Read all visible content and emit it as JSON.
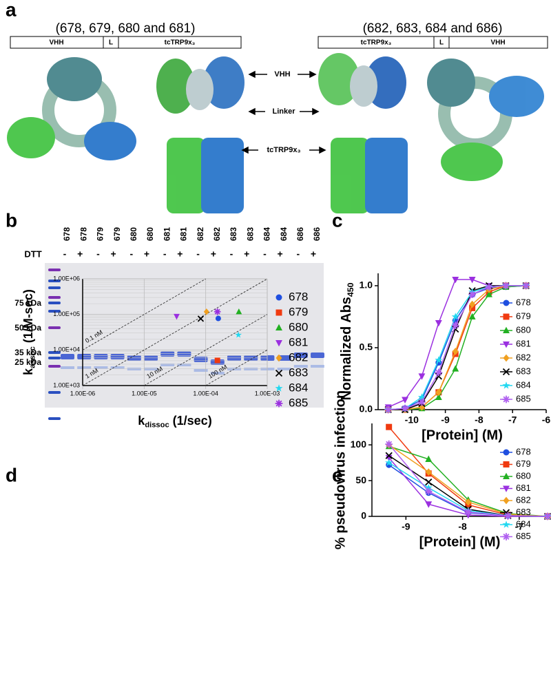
{
  "panels": {
    "a": {
      "letter": "a",
      "left": {
        "title": "(678, 679, 680 and 681)",
        "segments": [
          "VHH",
          "L",
          "tcTRP9x₃"
        ]
      },
      "right": {
        "title": "(682, 683, 684 and 686)",
        "segments": [
          "tcTRP9x₃",
          "L",
          "VHH"
        ]
      },
      "arrows": [
        "VHH",
        "Linker",
        "tcTRP9x₃"
      ]
    },
    "b": {
      "letter": "b",
      "dtt_label": "DTT",
      "lanes": [
        {
          "name": "678",
          "dtt": "-"
        },
        {
          "name": "678",
          "dtt": "+"
        },
        {
          "name": "679",
          "dtt": "-"
        },
        {
          "name": "679",
          "dtt": "+"
        },
        {
          "name": "680",
          "dtt": "-"
        },
        {
          "name": "680",
          "dtt": "+"
        },
        {
          "name": "681",
          "dtt": "-"
        },
        {
          "name": "681",
          "dtt": "+"
        },
        {
          "name": "682",
          "dtt": "-"
        },
        {
          "name": "682",
          "dtt": "+"
        },
        {
          "name": "683",
          "dtt": "-"
        },
        {
          "name": "683",
          "dtt": "+"
        },
        {
          "name": "684",
          "dtt": "-"
        },
        {
          "name": "684",
          "dtt": "+"
        },
        {
          "name": "686",
          "dtt": "-"
        },
        {
          "name": "686",
          "dtt": "+"
        }
      ],
      "markers": [
        "75 kDa",
        "50 kDa",
        "35 kDa",
        "25 kDa"
      ]
    },
    "c": {
      "letter": "c"
    },
    "d": {
      "letter": "d"
    },
    "e": {
      "letter": "e"
    }
  },
  "chart_data": [
    {
      "type": "line",
      "x_label": "[Protein] (M)",
      "y_label": {
        "text": "Normalized Abs",
        "sub": "450"
      },
      "xlim": [
        -11,
        -6
      ],
      "xticks": [
        -10,
        -9,
        -8,
        -7,
        -6
      ],
      "ylim": [
        0,
        1.1
      ],
      "yticks": [
        {
          "value": 0,
          "label": "0.0"
        },
        0.5,
        {
          "value": 1,
          "label": "1.0"
        }
      ],
      "legend": "right",
      "x": [
        -10.7,
        -10.2,
        -9.7,
        -9.2,
        -8.7,
        -8.2,
        -7.7,
        -7.2,
        -6.6
      ],
      "series": [
        {
          "name": "678",
          "color": "#1f4fe0",
          "marker": "circle",
          "values": [
            0,
            0.01,
            0.08,
            0.38,
            0.72,
            0.93,
            0.98,
            0.99,
            1.0
          ]
        },
        {
          "name": "679",
          "color": "#f03a10",
          "marker": "square",
          "values": [
            0,
            0,
            0.02,
            0.14,
            0.45,
            0.82,
            0.95,
            1.0,
            1.0
          ]
        },
        {
          "name": "680",
          "color": "#22b022",
          "marker": "triangle",
          "values": [
            0,
            0,
            0.01,
            0.1,
            0.33,
            0.75,
            0.93,
            0.99,
            1.0
          ]
        },
        {
          "name": "681",
          "color": "#9b30e0",
          "marker": "triangle-down",
          "values": [
            0.02,
            0.08,
            0.27,
            0.7,
            1.05,
            1.05,
            1.0,
            1.0,
            1.0
          ]
        },
        {
          "name": "682",
          "color": "#f0a020",
          "marker": "diamond",
          "values": [
            0,
            0,
            0.02,
            0.14,
            0.47,
            0.85,
            0.97,
            1.0,
            1.0
          ]
        },
        {
          "name": "683",
          "color": "#000000",
          "marker": "x",
          "values": [
            0,
            0,
            0.05,
            0.27,
            0.65,
            0.96,
            1.0,
            1.0,
            1.0
          ]
        },
        {
          "name": "684",
          "color": "#22d8f0",
          "marker": "star",
          "values": [
            0,
            0.01,
            0.1,
            0.4,
            0.75,
            0.95,
            0.99,
            1.0,
            1.0
          ]
        },
        {
          "name": "685",
          "color": "#b060f0",
          "marker": "asterisk",
          "values": [
            0,
            0.01,
            0.06,
            0.3,
            0.68,
            0.93,
            0.99,
            1.0,
            1.0
          ]
        }
      ]
    },
    {
      "type": "scatter",
      "x_label": {
        "text": "k",
        "sub": "dissoc",
        "after": " (1/sec)"
      },
      "y_label": {
        "text": "k",
        "sub": "assoc",
        "after": " (1/M-sec)"
      },
      "xlog": true,
      "ylog": true,
      "grid": true,
      "legend": "right",
      "xlim": [
        1e-06,
        0.001
      ],
      "xticks": [
        {
          "value": 1e-06,
          "label": "1.00E-06"
        },
        {
          "value": 1e-05,
          "label": "1.00E-05"
        },
        {
          "value": 0.0001,
          "label": "1.00E-04"
        },
        {
          "value": 0.001,
          "label": "1.00E-03"
        }
      ],
      "ylim": [
        1000,
        1000000
      ],
      "yticks": [
        {
          "value": 1000,
          "label": "1.00E+03"
        },
        {
          "value": 10000,
          "label": "1.00E+04"
        },
        {
          "value": 100000,
          "label": "1.00E+05"
        },
        {
          "value": 1000000,
          "label": "1.00E+06"
        }
      ],
      "iso_lines": [
        {
          "label": "0.1 nM",
          "kd": 1e-10
        },
        {
          "label": "1 nM",
          "kd": 1e-09
        },
        {
          "label": "10 nM",
          "kd": 1e-08
        },
        {
          "label": "100 nM",
          "kd": 1e-07
        }
      ],
      "series": [
        {
          "name": "678",
          "color": "#1f4fe0",
          "marker": "circle",
          "x": [
            0.00016
          ],
          "values": [
            77000
          ]
        },
        {
          "name": "679",
          "color": "#f03a10",
          "marker": "square",
          "x": [
            0.000155
          ],
          "values": [
            5100
          ]
        },
        {
          "name": "680",
          "color": "#22b022",
          "marker": "triangle",
          "x": [
            0.000346
          ],
          "values": [
            119000
          ]
        },
        {
          "name": "681",
          "color": "#9b30e0",
          "marker": "triangle-down",
          "x": [
            3.37e-05
          ],
          "values": [
            88000
          ]
        },
        {
          "name": "682",
          "color": "#f0a020",
          "marker": "diamond",
          "x": [
            0.000103
          ],
          "values": [
            119000
          ]
        },
        {
          "name": "683",
          "color": "#000000",
          "marker": "x",
          "x": [
            8.3e-05
          ],
          "values": [
            76000
          ]
        },
        {
          "name": "684",
          "color": "#22d8f0",
          "marker": "star",
          "x": [
            0.00034
          ],
          "values": [
            26500
          ]
        },
        {
          "name": "685",
          "color": "#9b30e0",
          "marker": "asterisk",
          "x": [
            0.000155
          ],
          "values": [
            119000
          ]
        }
      ]
    },
    {
      "type": "line",
      "x_label": "[Protein] (M)",
      "y_label": "% pseudovirus infection",
      "xlim": [
        -9.6,
        -6.5
      ],
      "xticks": [
        -9,
        -8,
        -7
      ],
      "ylim": [
        0,
        130
      ],
      "yticks": [
        0,
        50,
        100
      ],
      "legend": "right",
      "x": [
        -9.3,
        -8.6,
        -7.9,
        -7.2,
        -6.5
      ],
      "series": [
        {
          "name": "678",
          "color": "#1f4fe0",
          "marker": "circle",
          "values": [
            72,
            33,
            5,
            1,
            0
          ]
        },
        {
          "name": "679",
          "color": "#f03a10",
          "marker": "square",
          "values": [
            125,
            60,
            16,
            2,
            0
          ]
        },
        {
          "name": "680",
          "color": "#22b022",
          "marker": "triangle",
          "values": [
            98,
            80,
            23,
            4,
            0
          ]
        },
        {
          "name": "681",
          "color": "#9b30e0",
          "marker": "triangle-down",
          "values": [
            82,
            17,
            2,
            0,
            0
          ]
        },
        {
          "name": "682",
          "color": "#f0a020",
          "marker": "diamond",
          "values": [
            100,
            62,
            20,
            3,
            0
          ]
        },
        {
          "name": "683",
          "color": "#000000",
          "marker": "x",
          "values": [
            85,
            48,
            10,
            1,
            0
          ]
        },
        {
          "name": "684",
          "color": "#22d8f0",
          "marker": "star",
          "values": [
            75,
            40,
            8,
            1,
            0
          ]
        },
        {
          "name": "685",
          "color": "#b060f0",
          "marker": "asterisk",
          "values": [
            101,
            35,
            6,
            1,
            0
          ]
        }
      ]
    }
  ]
}
